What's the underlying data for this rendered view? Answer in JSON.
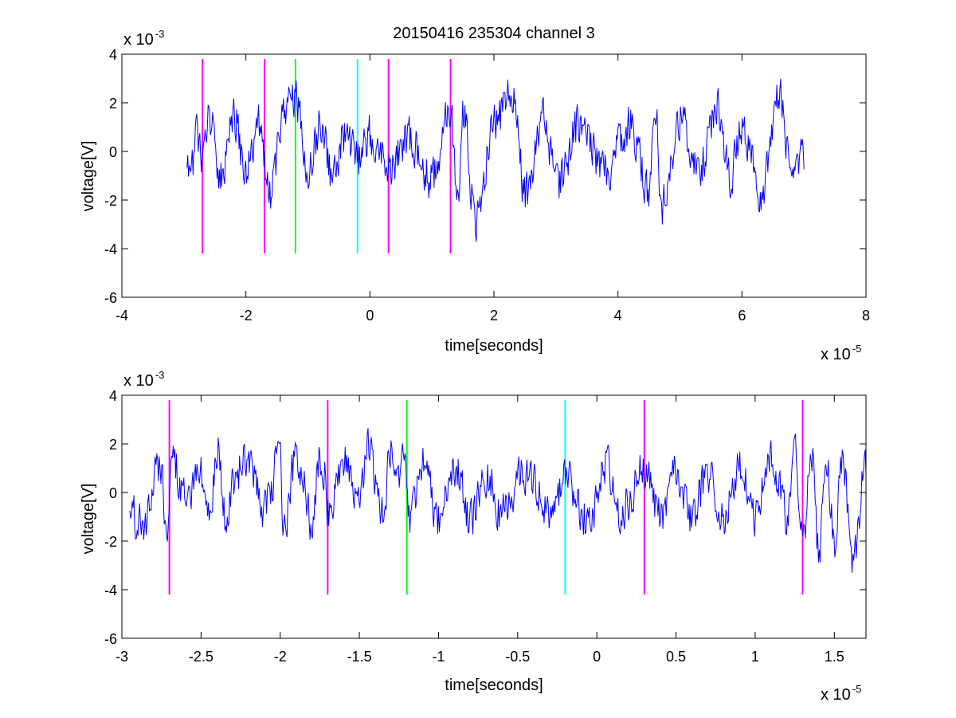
{
  "chart_data": [
    {
      "type": "line",
      "title": "20150416 235304 channel 3",
      "xlabel": "time[seconds]",
      "ylabel": "voltage[V]",
      "x_multiplier_label": "x 10",
      "x_multiplier_exp": "-5",
      "y_multiplier_label": "x 10",
      "y_multiplier_exp": "-3",
      "xlim": [
        -4,
        8
      ],
      "ylim": [
        -6,
        4
      ],
      "xticks": [
        -4,
        -2,
        0,
        2,
        4,
        6,
        8
      ],
      "xtick_labels": [
        "-4",
        "-2",
        "0",
        "2",
        "4",
        "6",
        "8"
      ],
      "yticks": [
        -6,
        -4,
        -2,
        0,
        2,
        4
      ],
      "ytick_labels": [
        "-6",
        "-4",
        "-2",
        "0",
        "2",
        "4"
      ],
      "grid": false,
      "series_color": "#0000ff",
      "signal": {
        "x_start": -2.95,
        "x_end": 7.0,
        "seed": 20150416,
        "n_points": 820,
        "envelope": [
          [
            -2.95,
            -1.0
          ],
          [
            -2.9,
            -1.7
          ],
          [
            -2.8,
            0.9
          ],
          [
            -2.7,
            -0.8
          ],
          [
            -2.6,
            1.8
          ],
          [
            -2.4,
            -1.5
          ],
          [
            -2.2,
            2.0
          ],
          [
            -2.0,
            -1.2
          ],
          [
            -1.8,
            1.6
          ],
          [
            -1.6,
            -2.4
          ],
          [
            -1.4,
            2.3
          ],
          [
            -1.2,
            2.8
          ],
          [
            -1.0,
            -1.2
          ],
          [
            -0.8,
            1.4
          ],
          [
            -0.6,
            -1.5
          ],
          [
            -0.4,
            1.2
          ],
          [
            -0.2,
            -0.6
          ],
          [
            0.0,
            0.9
          ],
          [
            0.3,
            -1.0
          ],
          [
            0.6,
            0.8
          ],
          [
            1.0,
            -1.6
          ],
          [
            1.3,
            2.6
          ],
          [
            1.4,
            -3.1
          ],
          [
            1.5,
            2.2
          ],
          [
            1.7,
            -3.8
          ],
          [
            2.0,
            1.5
          ],
          [
            2.3,
            3.3
          ],
          [
            2.5,
            -2.5
          ],
          [
            2.8,
            2.0
          ],
          [
            3.0,
            -1.8
          ],
          [
            3.4,
            1.6
          ],
          [
            3.8,
            -1.2
          ],
          [
            4.2,
            1.5
          ],
          [
            4.5,
            -2.3
          ],
          [
            4.6,
            2.5
          ],
          [
            4.7,
            -3.2
          ],
          [
            5.0,
            1.8
          ],
          [
            5.3,
            -1.0
          ],
          [
            5.6,
            2.6
          ],
          [
            5.8,
            -1.5
          ],
          [
            6.0,
            1.6
          ],
          [
            6.3,
            -2.4
          ],
          [
            6.6,
            3.0
          ],
          [
            6.8,
            -1.2
          ],
          [
            7.0,
            -0.3
          ]
        ]
      },
      "markers": [
        {
          "x": -2.7,
          "y_low": -4.2,
          "y_high": 3.8,
          "color": "#ff00ff"
        },
        {
          "x": -1.7,
          "y_low": -4.2,
          "y_high": 3.8,
          "color": "#ff00ff"
        },
        {
          "x": -1.2,
          "y_low": -4.2,
          "y_high": 3.8,
          "color": "#00ff00"
        },
        {
          "x": -0.2,
          "y_low": -4.2,
          "y_high": 3.8,
          "color": "#00ffff"
        },
        {
          "x": 0.3,
          "y_low": -4.2,
          "y_high": 3.8,
          "color": "#ff00ff"
        },
        {
          "x": 1.3,
          "y_low": -4.2,
          "y_high": 3.8,
          "color": "#ff00ff"
        }
      ]
    },
    {
      "type": "line",
      "title": "",
      "xlabel": "time[seconds]",
      "ylabel": "voltage[V]",
      "x_multiplier_label": "x 10",
      "x_multiplier_exp": "-5",
      "y_multiplier_label": "x 10",
      "y_multiplier_exp": "-3",
      "xlim": [
        -3.0,
        1.7
      ],
      "ylim": [
        -6,
        4
      ],
      "xticks": [
        -3,
        -2.5,
        -2,
        -1.5,
        -1,
        -0.5,
        0,
        0.5,
        1,
        1.5
      ],
      "xtick_labels": [
        "-3",
        "-2.5",
        "-2",
        "-1.5",
        "-1",
        "-0.5",
        "0",
        "0.5",
        "1",
        "1.5"
      ],
      "yticks": [
        -6,
        -4,
        -2,
        0,
        2,
        4
      ],
      "ytick_labels": [
        "-6",
        "-4",
        "-2",
        "0",
        "2",
        "4"
      ],
      "grid": false,
      "series_color": "#0000ff",
      "signal": {
        "x_start": -2.95,
        "x_end": 1.7,
        "seed": 235304,
        "n_points": 900,
        "envelope": [
          [
            -2.95,
            -0.8
          ],
          [
            -2.9,
            -1.8
          ],
          [
            -2.85,
            -1.5
          ],
          [
            -2.8,
            0.9
          ],
          [
            -2.75,
            1.4
          ],
          [
            -2.72,
            -2.6
          ],
          [
            -2.68,
            1.9
          ],
          [
            -2.6,
            -0.5
          ],
          [
            -2.5,
            1.2
          ],
          [
            -2.45,
            -1.2
          ],
          [
            -2.4,
            2.6
          ],
          [
            -2.35,
            -1.5
          ],
          [
            -2.3,
            0.8
          ],
          [
            -2.2,
            2.0
          ],
          [
            -2.1,
            -1.0
          ],
          [
            -2.0,
            2.2
          ],
          [
            -1.98,
            -2.6
          ],
          [
            -1.9,
            2.2
          ],
          [
            -1.8,
            -1.7
          ],
          [
            -1.75,
            1.9
          ],
          [
            -1.72,
            1.2
          ],
          [
            -1.7,
            -1.3
          ],
          [
            -1.6,
            1.7
          ],
          [
            -1.5,
            -0.5
          ],
          [
            -1.45,
            2.6
          ],
          [
            -1.35,
            -1.2
          ],
          [
            -1.3,
            2.8
          ],
          [
            -1.25,
            1.2
          ],
          [
            -1.22,
            2.8
          ],
          [
            -1.18,
            -1.4
          ],
          [
            -1.1,
            1.6
          ],
          [
            -1.0,
            -1.5
          ],
          [
            -0.9,
            1.3
          ],
          [
            -0.8,
            -1.5
          ],
          [
            -0.7,
            1.0
          ],
          [
            -0.6,
            -1.2
          ],
          [
            -0.45,
            1.2
          ],
          [
            -0.3,
            -1.2
          ],
          [
            -0.2,
            1.0
          ],
          [
            -0.1,
            -1.1
          ],
          [
            -0.05,
            -2.0
          ],
          [
            0.05,
            1.6
          ],
          [
            0.15,
            -1.0
          ],
          [
            0.3,
            1.3
          ],
          [
            0.4,
            -1.2
          ],
          [
            0.5,
            1.1
          ],
          [
            0.6,
            -1.3
          ],
          [
            0.7,
            1.2
          ],
          [
            0.8,
            -1.3
          ],
          [
            0.9,
            1.2
          ],
          [
            1.0,
            -1.3
          ],
          [
            1.1,
            2.1
          ],
          [
            1.2,
            -1.5
          ],
          [
            1.25,
            2.8
          ],
          [
            1.3,
            -3.1
          ],
          [
            1.35,
            2.8
          ],
          [
            1.4,
            -3.3
          ],
          [
            1.45,
            1.3
          ],
          [
            1.5,
            -2.6
          ],
          [
            1.55,
            1.6
          ],
          [
            1.62,
            -3.8
          ],
          [
            1.7,
            1.8
          ]
        ]
      },
      "markers": [
        {
          "x": -2.7,
          "y_low": -4.2,
          "y_high": 3.8,
          "color": "#ff00ff"
        },
        {
          "x": -1.7,
          "y_low": -4.2,
          "y_high": 3.8,
          "color": "#ff00ff"
        },
        {
          "x": -1.2,
          "y_low": -4.2,
          "y_high": 3.8,
          "color": "#00ff00"
        },
        {
          "x": -0.2,
          "y_low": -4.2,
          "y_high": 3.8,
          "color": "#00ffff"
        },
        {
          "x": 0.3,
          "y_low": -4.2,
          "y_high": 3.8,
          "color": "#ff00ff"
        },
        {
          "x": 1.3,
          "y_low": -4.2,
          "y_high": 3.8,
          "color": "#ff00ff"
        }
      ]
    }
  ]
}
